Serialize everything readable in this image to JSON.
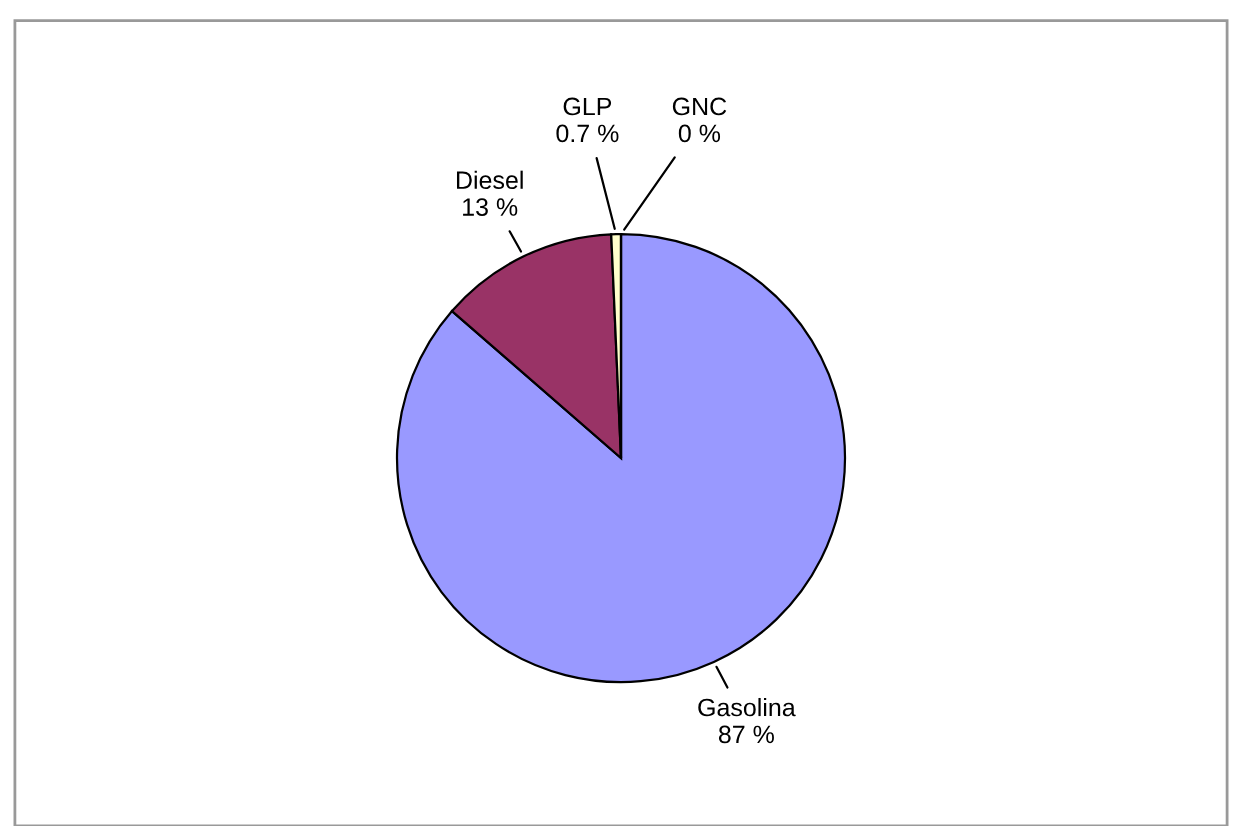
{
  "chart_data": {
    "type": "pie",
    "categories": [
      "Gasolina",
      "Diesel",
      "GLP",
      "GNC"
    ],
    "values": [
      87,
      13,
      0.7,
      0
    ],
    "value_labels": [
      "87 %",
      "13 %",
      "0.7 %",
      "0 %"
    ],
    "colors": [
      "#9999ff",
      "#993366",
      "#ffffcc",
      "#ccffff"
    ]
  }
}
